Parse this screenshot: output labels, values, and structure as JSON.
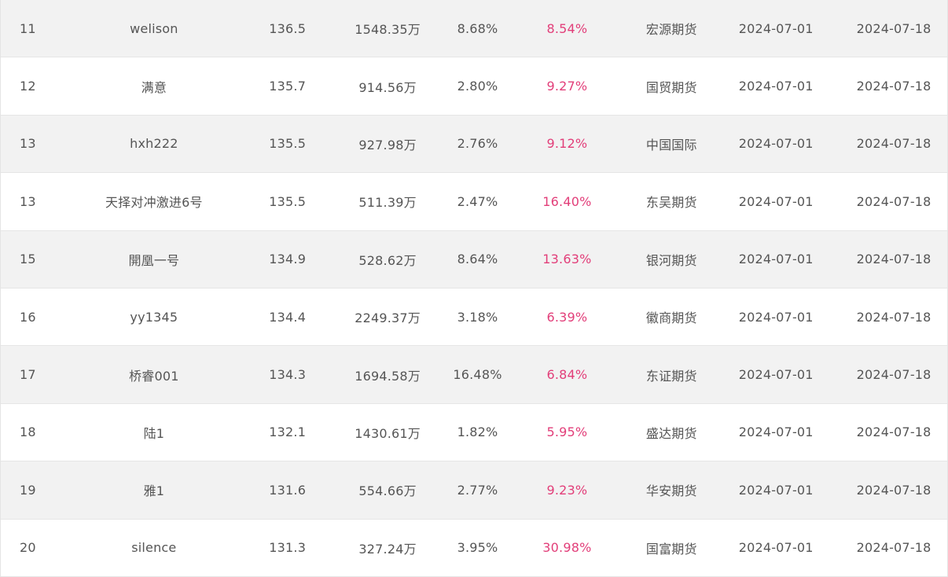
{
  "ranking": {
    "rows": [
      {
        "rank": "11",
        "name": "welison",
        "score": "136.5",
        "net": "1548.35万",
        "drawdown": "8.68%",
        "return": "8.54%",
        "firm": "宏源期货",
        "start": "2024-07-01",
        "end": "2024-07-18"
      },
      {
        "rank": "12",
        "name": "满意",
        "score": "135.7",
        "net": "914.56万",
        "drawdown": "2.80%",
        "return": "9.27%",
        "firm": "国贸期货",
        "start": "2024-07-01",
        "end": "2024-07-18"
      },
      {
        "rank": "13",
        "name": "hxh222",
        "score": "135.5",
        "net": "927.98万",
        "drawdown": "2.76%",
        "return": "9.12%",
        "firm": "中国国际",
        "start": "2024-07-01",
        "end": "2024-07-18"
      },
      {
        "rank": "13",
        "name": "天择对冲激进6号",
        "score": "135.5",
        "net": "511.39万",
        "drawdown": "2.47%",
        "return": "16.40%",
        "firm": "东吴期货",
        "start": "2024-07-01",
        "end": "2024-07-18"
      },
      {
        "rank": "15",
        "name": "開凰一号",
        "score": "134.9",
        "net": "528.62万",
        "drawdown": "8.64%",
        "return": "13.63%",
        "firm": "银河期货",
        "start": "2024-07-01",
        "end": "2024-07-18"
      },
      {
        "rank": "16",
        "name": "yy1345",
        "score": "134.4",
        "net": "2249.37万",
        "drawdown": "3.18%",
        "return": "6.39%",
        "firm": "徽商期货",
        "start": "2024-07-01",
        "end": "2024-07-18"
      },
      {
        "rank": "17",
        "name": "桥睿001",
        "score": "134.3",
        "net": "1694.58万",
        "drawdown": "16.48%",
        "return": "6.84%",
        "firm": "东证期货",
        "start": "2024-07-01",
        "end": "2024-07-18"
      },
      {
        "rank": "18",
        "name": "陆1",
        "score": "132.1",
        "net": "1430.61万",
        "drawdown": "1.82%",
        "return": "5.95%",
        "firm": "盛达期货",
        "start": "2024-07-01",
        "end": "2024-07-18"
      },
      {
        "rank": "19",
        "name": "雅1",
        "score": "131.6",
        "net": "554.66万",
        "drawdown": "2.77%",
        "return": "9.23%",
        "firm": "华安期货",
        "start": "2024-07-01",
        "end": "2024-07-18"
      },
      {
        "rank": "20",
        "name": "silence",
        "score": "131.3",
        "net": "327.24万",
        "drawdown": "3.95%",
        "return": "30.98%",
        "firm": "国富期货",
        "start": "2024-07-01",
        "end": "2024-07-18"
      }
    ]
  },
  "colors": {
    "return_text": "#e23e79",
    "stripe": "#f2f2f2",
    "text": "#555555"
  }
}
